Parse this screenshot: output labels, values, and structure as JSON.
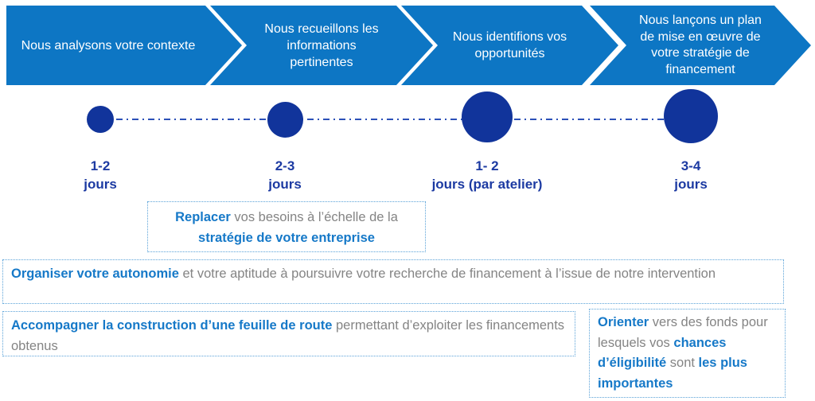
{
  "colors": {
    "chevron_blue": "#0d76c4",
    "dot_navy": "#11349b",
    "duration_navy": "#1c3aa2",
    "dash_line_blue": "#2b50b8",
    "note_accent_blue": "#1679c8",
    "note_gray_text": "#848484",
    "note_border_blue": "#5aa2d8"
  },
  "process_steps": [
    {
      "label": "Nous analysons votre contexte",
      "duration": "1-2",
      "duration_unit": "jours"
    },
    {
      "label": "Nous recueillons les\ninformations\npertinentes",
      "duration": "2-3",
      "duration_unit": "jours"
    },
    {
      "label": "Nous identifions vos\nopportunités",
      "duration": "1- 2",
      "duration_unit": "jours (par atelier)"
    },
    {
      "label": "Nous lançons un plan\nde mise en œuvre de\nvotre stratégie de\nfinancement",
      "duration": "3-4",
      "duration_unit": "jours"
    }
  ],
  "notes": [
    {
      "id": "replacer",
      "segments": [
        {
          "text": "Replacer ",
          "bold": true
        },
        {
          "text": "vos besoins à l’échelle de la ",
          "bold": false
        },
        {
          "text": "stratégie de votre entreprise",
          "bold": true
        }
      ]
    },
    {
      "id": "organiser",
      "segments": [
        {
          "text": "Organiser votre autonomie ",
          "bold": true
        },
        {
          "text": "et votre aptitude à poursuivre votre recherche de financement à l’issue de notre intervention",
          "bold": false
        }
      ]
    },
    {
      "id": "accompagner",
      "segments": [
        {
          "text": "Accompagner la construction d’une feuille de route ",
          "bold": true
        },
        {
          "text": "permettant d’exploiter les financements obtenus",
          "bold": false
        }
      ]
    },
    {
      "id": "orienter",
      "segments": [
        {
          "text": "Orienter ",
          "bold": true
        },
        {
          "text": "vers des fonds pour lesquels vos ",
          "bold": false
        },
        {
          "text": "chances d’éligibilité ",
          "bold": true
        },
        {
          "text": "sont ",
          "bold": false
        },
        {
          "text": "les plus importantes",
          "bold": true
        }
      ]
    }
  ]
}
